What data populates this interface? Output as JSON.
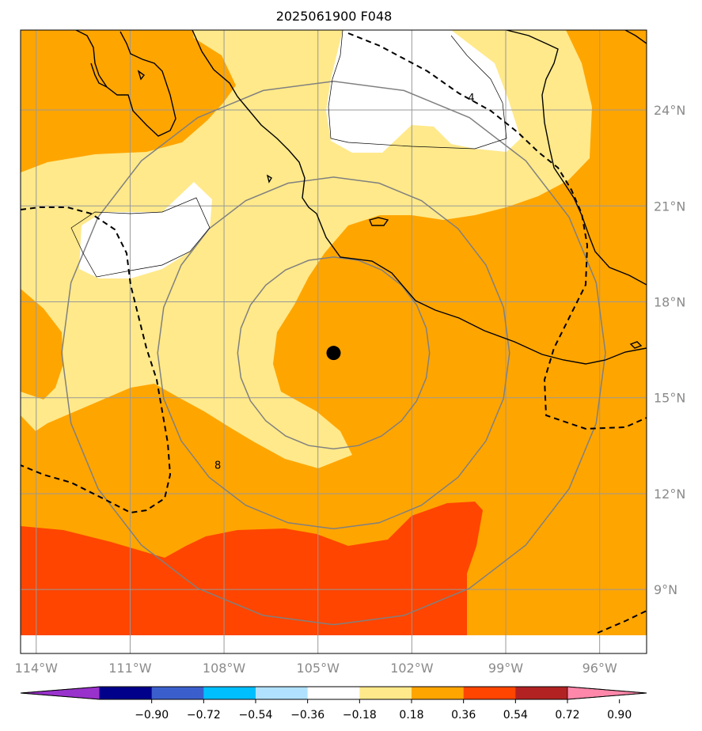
{
  "title": "2025061900 F048",
  "map": {
    "lon_range": [
      -114.5,
      -94.5
    ],
    "lat_range": [
      7.0,
      26.5
    ],
    "lon_ticks": [
      {
        "value": -114,
        "label": "114°W"
      },
      {
        "value": -111,
        "label": "111°W"
      },
      {
        "value": -108,
        "label": "108°W"
      },
      {
        "value": -105,
        "label": "105°W"
      },
      {
        "value": -102,
        "label": "102°W"
      },
      {
        "value": -99,
        "label": "99°W"
      },
      {
        "value": -96,
        "label": "96°W"
      }
    ],
    "lat_ticks": [
      {
        "value": 9,
        "label": "9°N"
      },
      {
        "value": 12,
        "label": "12°N"
      },
      {
        "value": 15,
        "label": "15°N"
      },
      {
        "value": 18,
        "label": "18°N"
      },
      {
        "value": 21,
        "label": "21°N"
      },
      {
        "value": 24,
        "label": "24°N"
      }
    ],
    "gridlines": true,
    "storm_center": {
      "lon": -104.5,
      "lat": 16.4
    },
    "range_rings_deg": [
      3,
      5.5,
      8.5
    ],
    "contour_labels": [
      {
        "text": "4",
        "lon": -100.1,
        "lat": 24.4
      },
      {
        "text": "8",
        "lon": -108.2,
        "lat": 12.9
      }
    ]
  },
  "colorbar": {
    "colors": [
      "#9932cc",
      "#00008b",
      "#3a5fcd",
      "#00bfff",
      "#b0e2ff",
      "#ffffff",
      "#ffe98a",
      "#ffa500",
      "#ff4500",
      "#b22222",
      "#ff88aa"
    ],
    "tick_labels": [
      "−0.90",
      "−0.72",
      "−0.54",
      "−0.36",
      "−0.18",
      "0.18",
      "0.36",
      "0.54",
      "0.72",
      "0.90"
    ]
  },
  "colors": {
    "white_level": "#ffffff",
    "yellow_level": "#ffe98a",
    "orange_level": "#ffa500",
    "red_level": "#ff4500",
    "grid": "#999999",
    "ring": "#808080",
    "coast": "#000000"
  }
}
